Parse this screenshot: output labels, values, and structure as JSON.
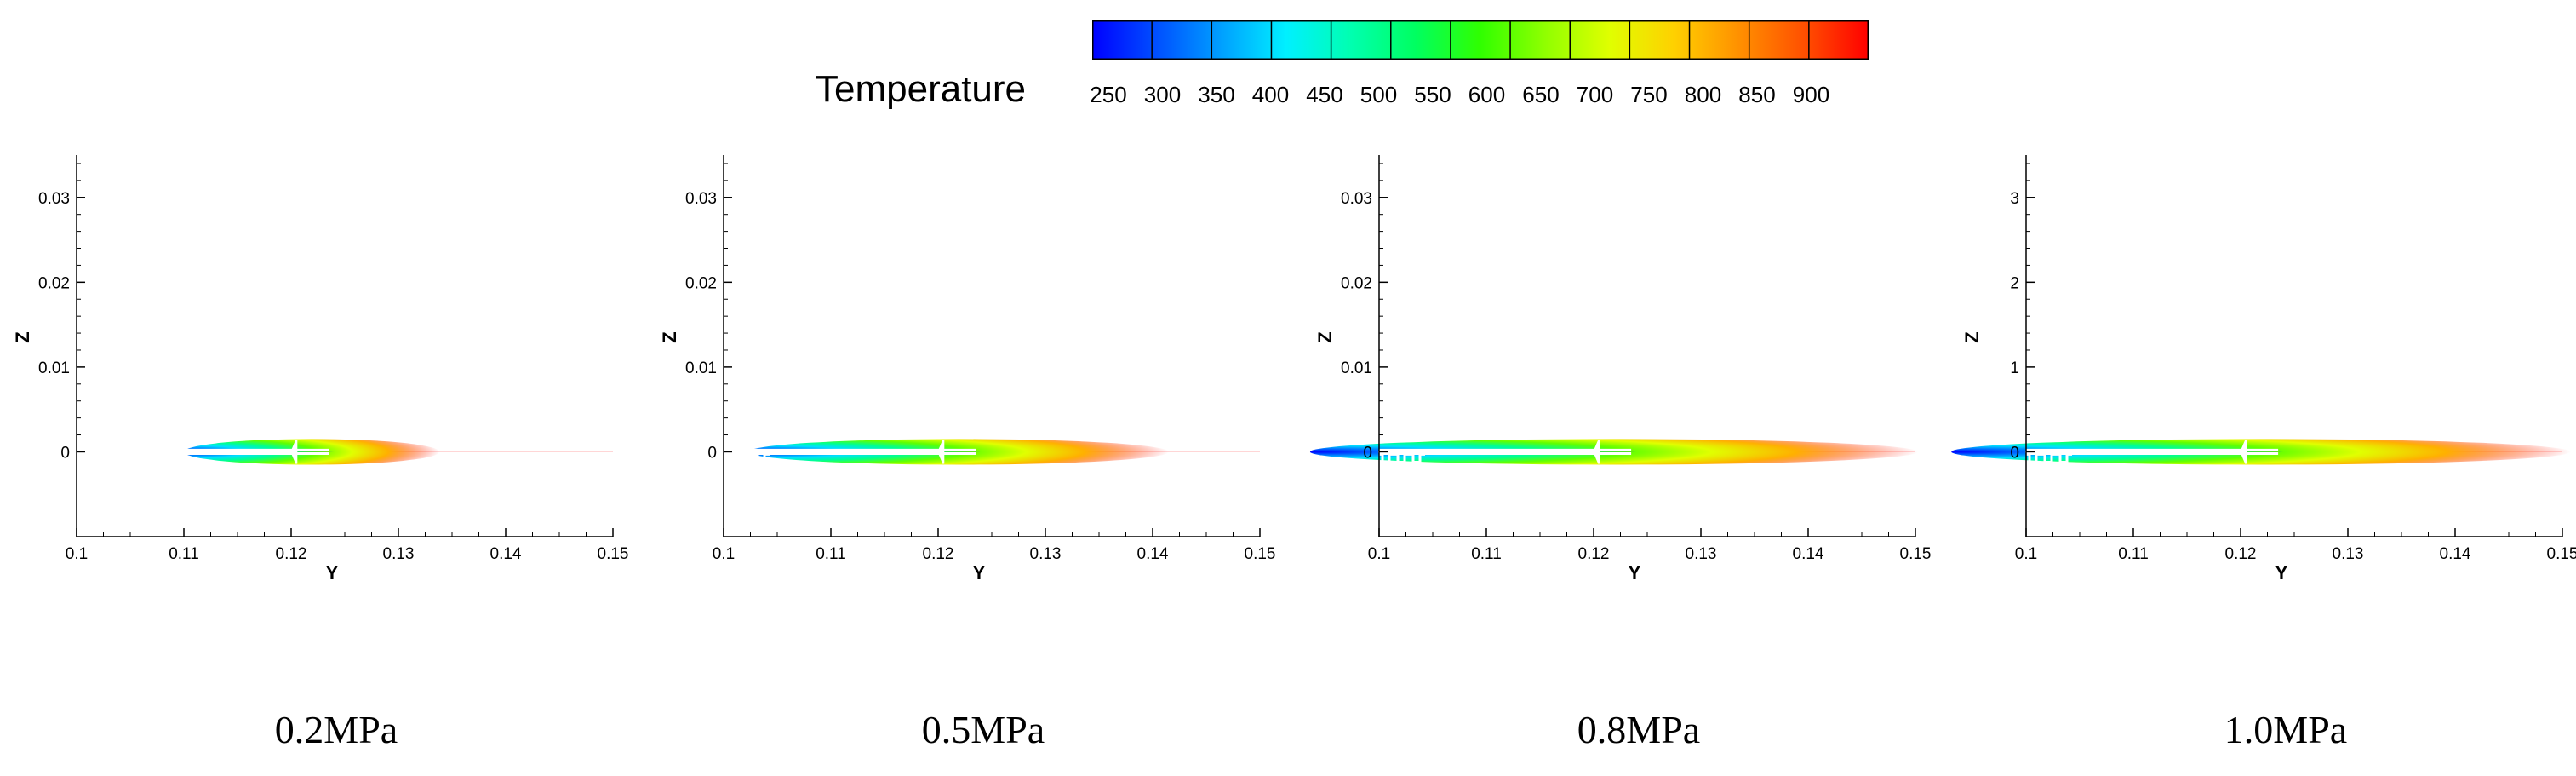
{
  "colors": {
    "colormap": [
      "#0000ff",
      "#0050ff",
      "#00a0ff",
      "#00f0ff",
      "#00ffb0",
      "#00ff60",
      "#30ff00",
      "#90ff00",
      "#e0ff00",
      "#ffd000",
      "#ff9000",
      "#ff5000",
      "#ff0000"
    ],
    "hot": "#ff0000",
    "cold": "#0a14e6",
    "axis": "#000000"
  },
  "legend": {
    "title": "Temperature",
    "ticks": [
      "250",
      "300",
      "350",
      "400",
      "450",
      "500",
      "550",
      "600",
      "650",
      "700",
      "750",
      "800",
      "850",
      "900"
    ]
  },
  "chart_data": [
    {
      "type": "heatmap",
      "caption": "0.2MPa",
      "xlabel": "Y",
      "ylabel": "Z",
      "xlim": [
        0.1,
        0.15
      ],
      "ylim": [
        -0.01,
        0.035
      ],
      "xticks": [
        "0.1",
        "0.11",
        "0.12",
        "0.13",
        "0.14",
        "0.15"
      ],
      "yticks": [
        "0",
        "0.01",
        "0.02",
        "0.03"
      ],
      "plume_length": 0.33
    },
    {
      "type": "heatmap",
      "caption": "0.5MPa",
      "xlabel": "Y",
      "ylabel": "Z",
      "xlim": [
        0.1,
        0.15
      ],
      "ylim": [
        -0.01,
        0.035
      ],
      "xticks": [
        "0.1",
        "0.11",
        "0.12",
        "0.13",
        "0.14",
        "0.15"
      ],
      "yticks": [
        "0",
        "0.01",
        "0.02",
        "0.03"
      ],
      "plume_length": 0.62
    },
    {
      "type": "heatmap",
      "caption": "0.8MPa",
      "xlabel": "Y",
      "ylabel": "Z",
      "xlim": [
        0.1,
        0.15
      ],
      "ylim": [
        -0.01,
        0.035
      ],
      "xticks": [
        "0.1",
        "0.11",
        "0.12",
        "0.13",
        "0.14",
        "0.15"
      ],
      "yticks": [
        "0",
        "0.01",
        "0.02",
        "0.03"
      ],
      "plume_length": 0.95
    },
    {
      "type": "heatmap",
      "caption": "1.0MPa",
      "xlabel": "Y",
      "ylabel": "Z",
      "xlim": [
        0.1,
        0.15
      ],
      "ylim": [
        -1,
        3.5
      ],
      "xticks": [
        "0.1",
        "0.11",
        "0.12",
        "0.13",
        "0.14",
        "0.15"
      ],
      "yticks": [
        "0",
        "1",
        "2",
        "3"
      ],
      "plume_length": 0.97
    }
  ]
}
